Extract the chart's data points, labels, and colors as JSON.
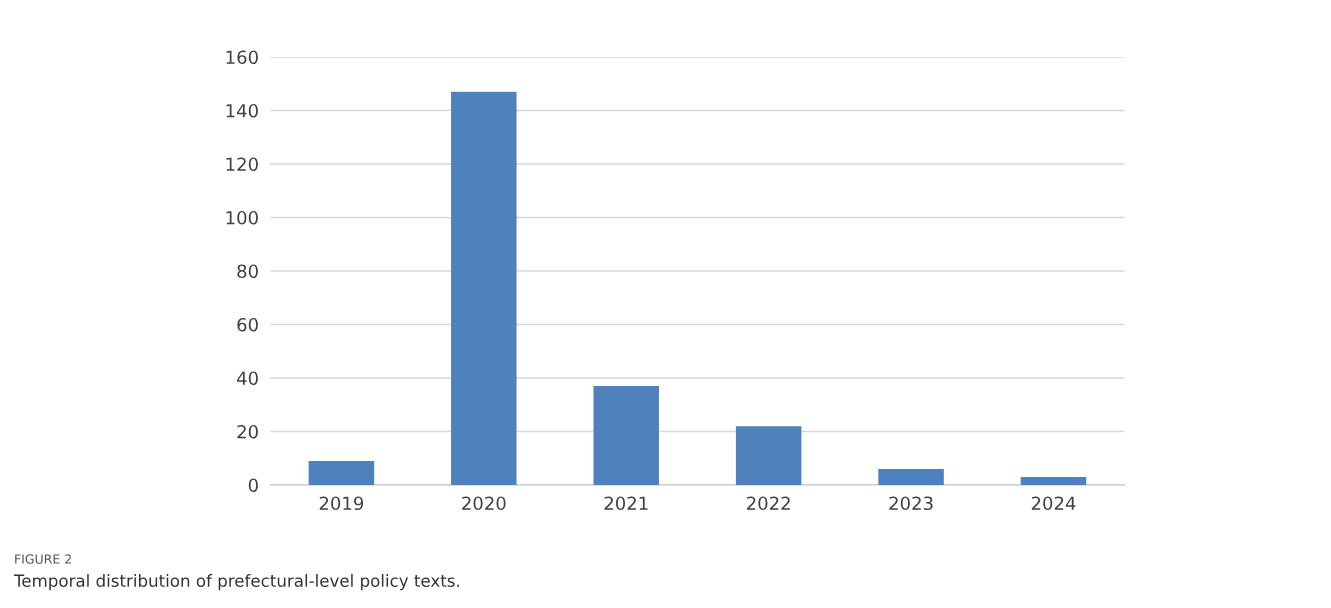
{
  "chart_data": {
    "type": "bar",
    "categories": [
      "2019",
      "2020",
      "2021",
      "2022",
      "2023",
      "2024"
    ],
    "values": [
      9,
      147,
      37,
      22,
      6,
      3
    ],
    "color": "#4f81bd",
    "ylim": [
      0,
      160
    ],
    "yticks": [
      0,
      20,
      40,
      60,
      80,
      100,
      120,
      140,
      160
    ],
    "grid": "y",
    "annotations": [
      "FIGURE 2",
      "Temporal distribution of prefectural-level policy texts."
    ]
  }
}
